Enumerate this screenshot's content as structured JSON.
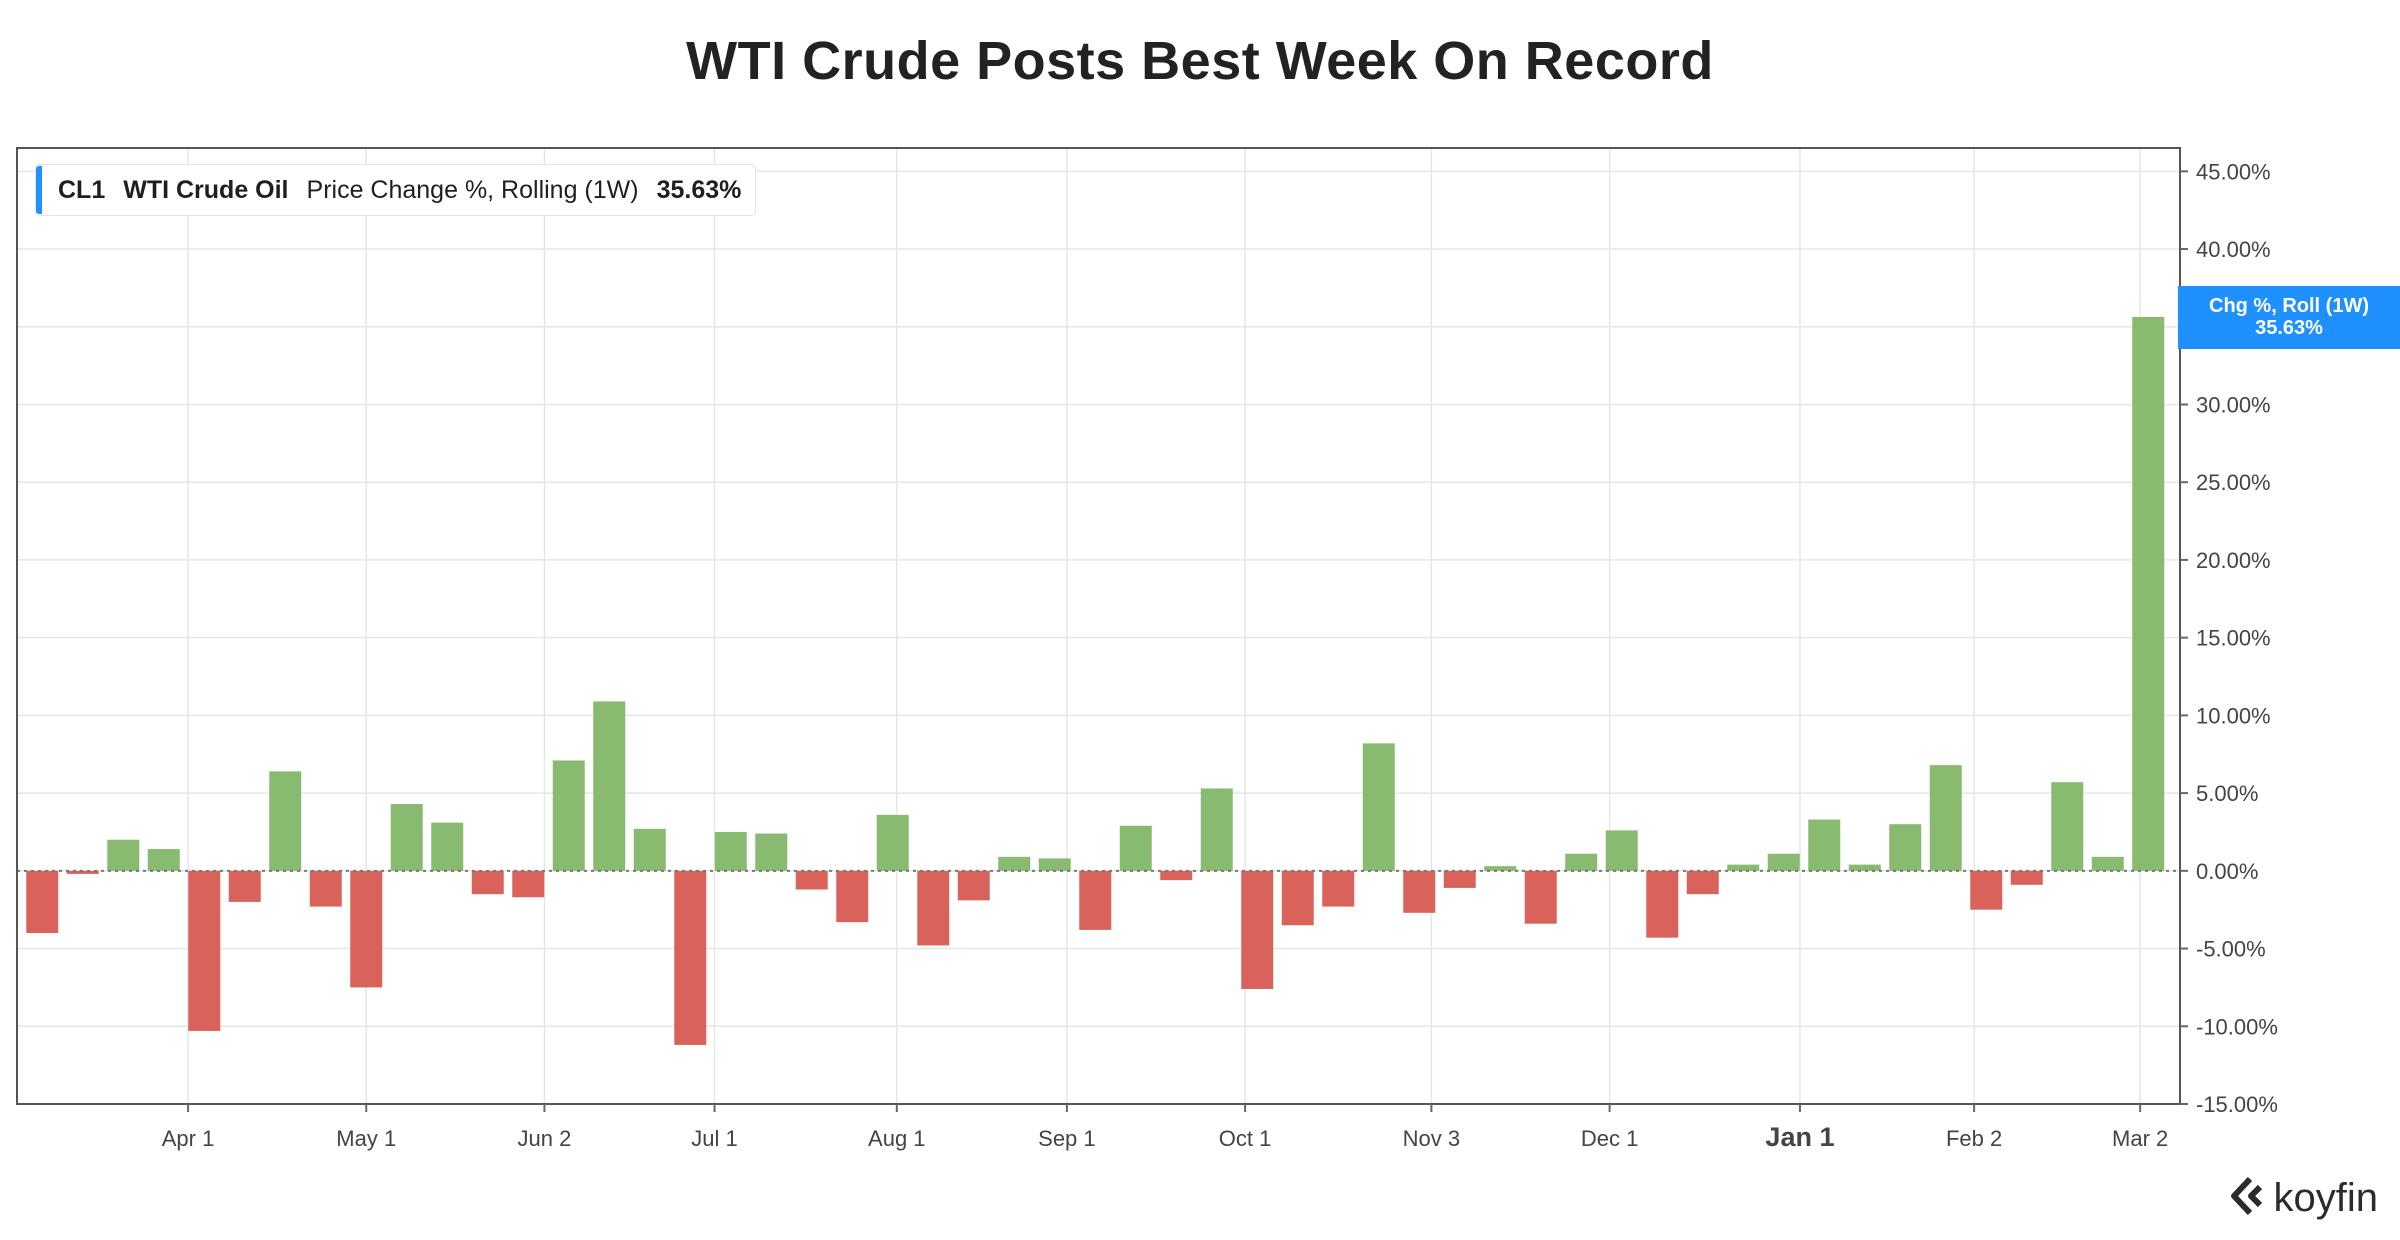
{
  "colors": {
    "positive": "#88bb70",
    "negative": "#d9635b",
    "accent": "#1e90ff",
    "grid": "#e6e6e6",
    "axis_text": "#444444"
  },
  "legend": {
    "ticker": "CL1",
    "name": "WTI Crude Oil",
    "metric": "Price Change %, Rolling (1W)",
    "value": "35.63%"
  },
  "current_tag": {
    "line1": "Chg %, Roll (1W)",
    "line2": "35.63%"
  },
  "brand": {
    "name": "koyfin",
    "icon": "koyfin-logo-icon"
  },
  "chart_data": {
    "type": "bar",
    "title": "WTI Crude Posts Best Week On Record",
    "xlabel": "",
    "ylabel": "",
    "ylim": [
      -15,
      46.5
    ],
    "y_ticks": [
      45,
      40,
      35,
      30,
      25,
      20,
      15,
      10,
      5,
      0,
      -5,
      -10,
      -15
    ],
    "y_tick_labels": [
      "45.00%",
      "40.00%",
      "35.00%",
      "30.00%",
      "25.00%",
      "20.00%",
      "15.00%",
      "10.00%",
      "5.00%",
      "0.00%",
      "-5.00%",
      "-10.00%",
      "-15.00%"
    ],
    "x_tick_labels": [
      "Apr 1",
      "May 1",
      "Jun 2",
      "Jul 1",
      "Aug 1",
      "Sep 1",
      "Oct 1",
      "Nov 3",
      "Dec 1",
      "Jan 1",
      "Feb 2",
      "Mar 2"
    ],
    "x_tick_positions": [
      3.6,
      8.0,
      12.4,
      16.6,
      21.1,
      25.3,
      29.7,
      34.3,
      38.7,
      43.4,
      47.7,
      51.8
    ],
    "x_tick_bold": [
      false,
      false,
      false,
      false,
      false,
      false,
      false,
      false,
      false,
      true,
      false,
      false
    ],
    "grid": true,
    "zero_line": "dotted",
    "legend_position": "top-left",
    "values": [
      -4.0,
      -0.2,
      2.0,
      1.4,
      -10.3,
      -2.0,
      6.4,
      -2.3,
      -7.5,
      4.3,
      3.1,
      -1.5,
      -1.7,
      7.1,
      10.9,
      2.7,
      -11.2,
      2.5,
      2.4,
      -1.2,
      -3.3,
      3.6,
      -4.8,
      -1.9,
      0.9,
      0.8,
      -3.8,
      2.9,
      -0.6,
      5.3,
      -7.6,
      -3.5,
      -2.3,
      8.2,
      -2.7,
      -1.1,
      0.3,
      -3.4,
      1.1,
      2.6,
      -4.3,
      -1.5,
      0.4,
      1.1,
      3.3,
      0.4,
      3.0,
      6.8,
      -2.5,
      -0.9,
      5.7,
      0.9,
      35.63
    ]
  }
}
